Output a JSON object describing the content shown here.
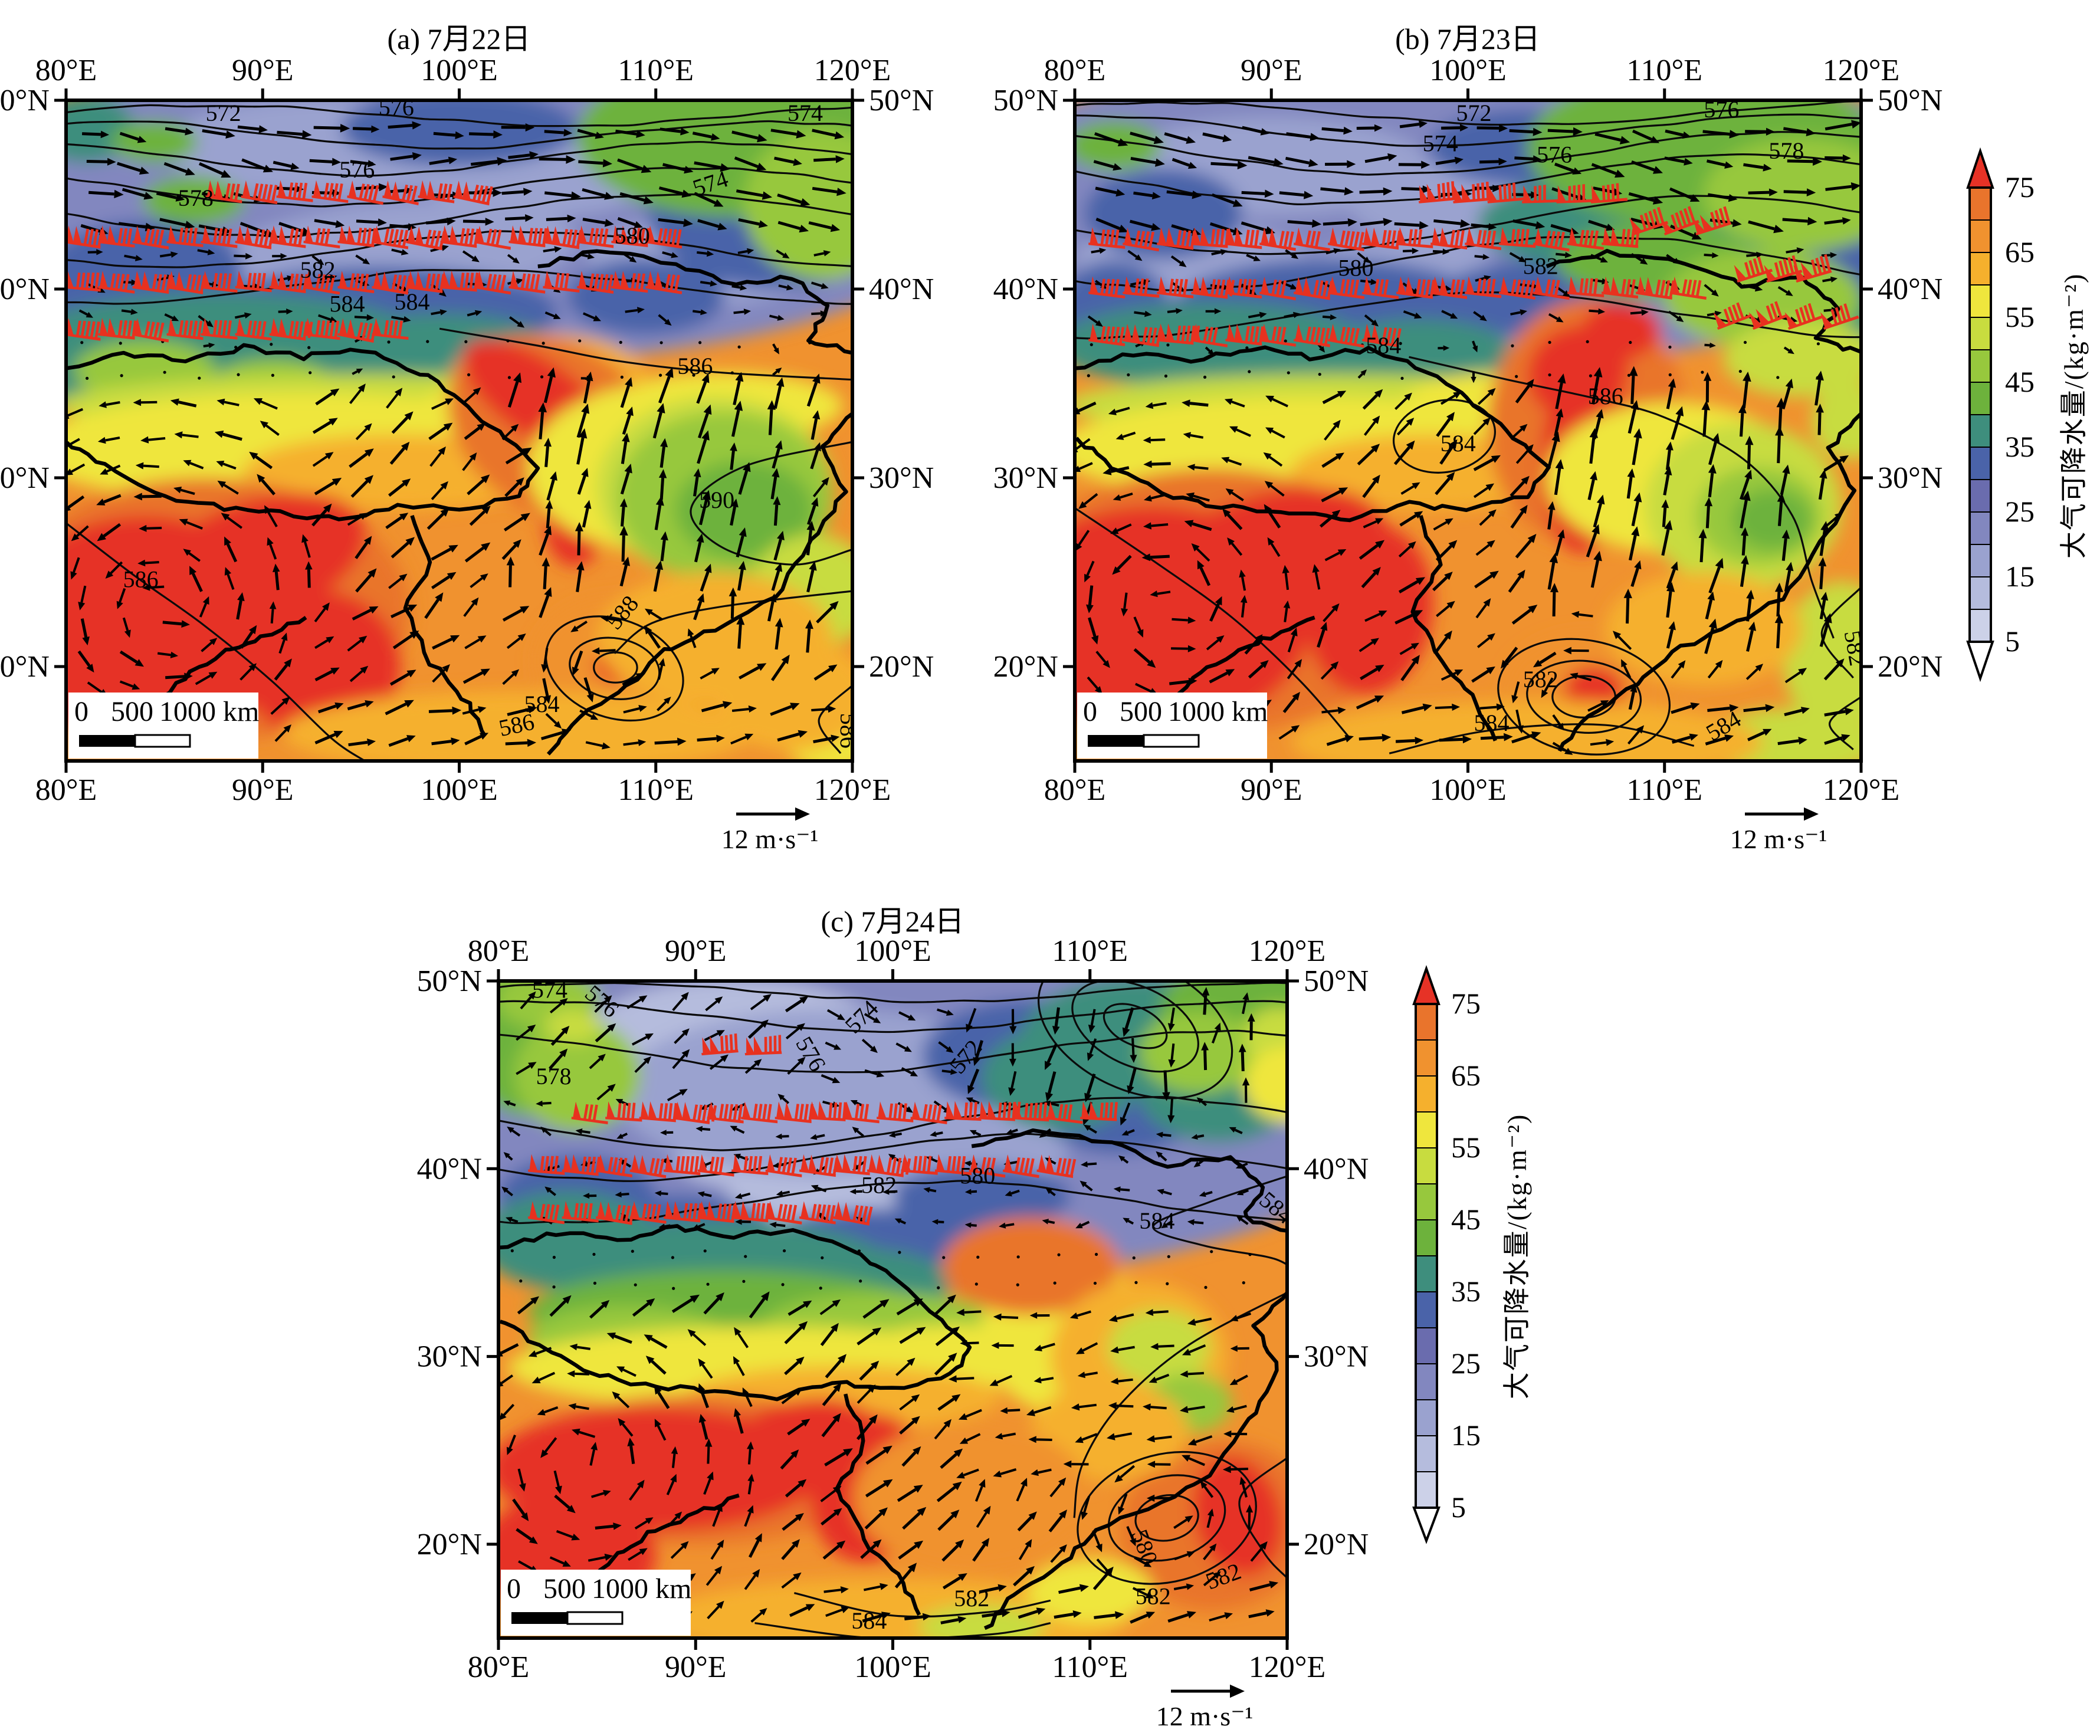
{
  "figure": {
    "lon_ticks": [
      "80°E",
      "90°E",
      "100°E",
      "110°E",
      "120°E"
    ],
    "lat_ticks": [
      "50°N",
      "40°N",
      "30°N",
      "20°N"
    ],
    "scale_bar": {
      "labels": [
        "0",
        "500",
        "1000 km"
      ],
      "ticks_km": [
        0,
        500,
        1000
      ]
    },
    "vector_reference_label": "12 m·s⁻¹",
    "colorbar_tick_labels": [
      "75",
      "65",
      "55",
      "45",
      "35",
      "25",
      "15",
      "5"
    ]
  },
  "chart_data": {
    "type": "heatmap",
    "subtype": "filled-contour weather maps with wind vectors, jet wind barbs and geopotential-height contours",
    "extent": {
      "lon_min": 80,
      "lon_max": 120,
      "lat_min": 15,
      "lat_max": 50
    },
    "field": {
      "name": "大气可降水量",
      "units": "kg·m⁻²",
      "level_min": 5,
      "level_max": 75,
      "level_step": 5
    },
    "palette": {
      "below_min": "#ffffff",
      "above_max": "#e63226",
      "segments_low_to_high": [
        "#ccd1e8",
        "#b5bcdd",
        "#9aa2cf",
        "#8287bf",
        "#6a6cae",
        "#4a63a9",
        "#3e8e7d",
        "#6db23c",
        "#97c83d",
        "#c8dc3f",
        "#efe63d",
        "#f5b02d",
        "#f0922f",
        "#e9742c"
      ]
    },
    "colorbar": {
      "ticks": [
        75,
        65,
        55,
        45,
        35,
        25,
        15,
        5
      ],
      "label": "大气可降水量/(kg·m⁻²)"
    },
    "vector_reference": {
      "label": "12 m·s⁻¹",
      "speed": 12
    },
    "scale_bar_km": [
      0,
      500,
      1000
    ],
    "overlays": [
      "位势高度等值线 (572–590)",
      "风矢量 (参考 12 m·s⁻¹)",
      "红色风羽 (急流)"
    ],
    "barb_color": "#e8311f",
    "panels": [
      {
        "id": "a",
        "title": "(a) 7月22日",
        "date": "7月22日",
        "contour_labels": [
          {
            "v": 572,
            "lon": 88.0,
            "lat": 48.9
          },
          {
            "v": 576,
            "lon": 96.8,
            "lat": 49.2
          },
          {
            "v": 574,
            "lon": 117.6,
            "lat": 48.9
          },
          {
            "v": 574,
            "lon": 112.9,
            "lat": 45.2,
            "rot": -18
          },
          {
            "v": 578,
            "lon": 86.6,
            "lat": 44.4
          },
          {
            "v": 576,
            "lon": 94.8,
            "lat": 45.9
          },
          {
            "v": 580,
            "lon": 108.8,
            "lat": 42.4
          },
          {
            "v": 582,
            "lon": 92.8,
            "lat": 40.6
          },
          {
            "v": 584,
            "lon": 94.3,
            "lat": 38.8
          },
          {
            "v": 584,
            "lon": 97.6,
            "lat": 38.9
          },
          {
            "v": 586,
            "lon": 112.0,
            "lat": 35.5
          },
          {
            "v": 590,
            "lon": 113.1,
            "lat": 28.4
          },
          {
            "v": 586,
            "lon": 83.8,
            "lat": 24.2
          },
          {
            "v": 588,
            "lon": 108.6,
            "lat": 22.6,
            "rot": -50
          },
          {
            "v": 584,
            "lon": 104.2,
            "lat": 17.6
          },
          {
            "v": 586,
            "lon": 103.0,
            "lat": 16.5,
            "rot": -12
          },
          {
            "v": 586,
            "lon": 119.4,
            "lat": 16.6,
            "rot": 90
          }
        ],
        "jet_barb_rows": [
          {
            "lat": 44.9,
            "from": 88.0,
            "to": 100.6,
            "step": 1.8,
            "rot": 4
          },
          {
            "lat": 42.5,
            "from": 80.8,
            "to": 111.2,
            "step": 1.74,
            "rot": 3
          },
          {
            "lat": 40.1,
            "from": 80.8,
            "to": 111.2,
            "step": 1.74,
            "rot": 2
          },
          {
            "lat": 37.6,
            "from": 80.8,
            "to": 97.6,
            "step": 1.74,
            "rot": 3
          }
        ]
      },
      {
        "id": "b",
        "title": "(b) 7月23日",
        "date": "7月23日",
        "contour_labels": [
          {
            "v": 572,
            "lon": 100.3,
            "lat": 48.9
          },
          {
            "v": 574,
            "lon": 98.6,
            "lat": 47.3
          },
          {
            "v": 576,
            "lon": 104.4,
            "lat": 46.7
          },
          {
            "v": 576,
            "lon": 112.9,
            "lat": 49.1
          },
          {
            "v": 578,
            "lon": 116.2,
            "lat": 46.9
          },
          {
            "v": 580,
            "lon": 94.3,
            "lat": 40.7
          },
          {
            "v": 582,
            "lon": 103.7,
            "lat": 40.8
          },
          {
            "v": 584,
            "lon": 95.7,
            "lat": 36.6
          },
          {
            "v": 584,
            "lon": 99.5,
            "lat": 31.4
          },
          {
            "v": 586,
            "lon": 107.0,
            "lat": 33.9
          },
          {
            "v": 582,
            "lon": 119.3,
            "lat": 20.9,
            "rot": 80
          },
          {
            "v": 582,
            "lon": 103.7,
            "lat": 18.9
          },
          {
            "v": 584,
            "lon": 101.2,
            "lat": 16.6
          },
          {
            "v": 584,
            "lon": 113.2,
            "lat": 16.5,
            "rot": -30
          }
        ],
        "jet_barb_rows": [
          {
            "lat": 44.6,
            "from": 98.4,
            "to": 107.2,
            "step": 1.75,
            "rot": -8
          },
          {
            "lat": 42.4,
            "from": 81.6,
            "to": 108.0,
            "step": 1.74,
            "rot": 2
          },
          {
            "lat": 42.9,
            "from": 109.3,
            "to": 112.5,
            "step": 1.6,
            "rot": -25
          },
          {
            "lat": 39.8,
            "from": 81.6,
            "to": 111.6,
            "step": 1.74,
            "rot": 2
          },
          {
            "lat": 40.4,
            "from": 114.6,
            "to": 118.8,
            "step": 1.5,
            "rot": -22
          },
          {
            "lat": 37.3,
            "from": 81.6,
            "to": 97.2,
            "step": 1.74,
            "rot": 3
          },
          {
            "lat": 37.9,
            "from": 113.6,
            "to": 119.2,
            "step": 1.8,
            "rot": -25
          }
        ]
      },
      {
        "id": "c",
        "title": "(c) 7月24日",
        "date": "7月24日",
        "contour_labels": [
          {
            "v": 574,
            "lon": 82.6,
            "lat": 49.1
          },
          {
            "v": 576,
            "lon": 85.0,
            "lat": 48.6,
            "rot": 40
          },
          {
            "v": 576,
            "lon": 95.5,
            "lat": 45.9,
            "rot": 60
          },
          {
            "v": 574,
            "lon": 98.7,
            "lat": 47.8,
            "rot": -45
          },
          {
            "v": 572,
            "lon": 104.0,
            "lat": 45.7,
            "rot": -50
          },
          {
            "v": 578,
            "lon": 82.8,
            "lat": 44.5
          },
          {
            "v": 582,
            "lon": 99.3,
            "lat": 38.7
          },
          {
            "v": 580,
            "lon": 104.3,
            "lat": 39.2
          },
          {
            "v": 584,
            "lon": 113.4,
            "lat": 36.8
          },
          {
            "v": 584,
            "lon": 119.2,
            "lat": 37.6,
            "rot": 40
          },
          {
            "v": 580,
            "lon": 112.4,
            "lat": 19.7,
            "rot": 70
          },
          {
            "v": 582,
            "lon": 113.2,
            "lat": 16.8
          },
          {
            "v": 582,
            "lon": 104.0,
            "lat": 16.7
          },
          {
            "v": 584,
            "lon": 98.8,
            "lat": 15.5
          },
          {
            "v": 582,
            "lon": 116.9,
            "lat": 17.9,
            "rot": -20
          }
        ],
        "jet_barb_rows": [
          {
            "lat": 46.1,
            "from": 91.2,
            "to": 93.8,
            "step": 2.2,
            "rot": -10
          },
          {
            "lat": 42.7,
            "from": 84.6,
            "to": 110.4,
            "step": 1.72,
            "rot": 0
          },
          {
            "lat": 39.9,
            "from": 82.4,
            "to": 108.4,
            "step": 1.72,
            "rot": 2
          },
          {
            "lat": 37.4,
            "from": 82.4,
            "to": 99.4,
            "step": 1.72,
            "rot": 3
          }
        ]
      }
    ]
  }
}
